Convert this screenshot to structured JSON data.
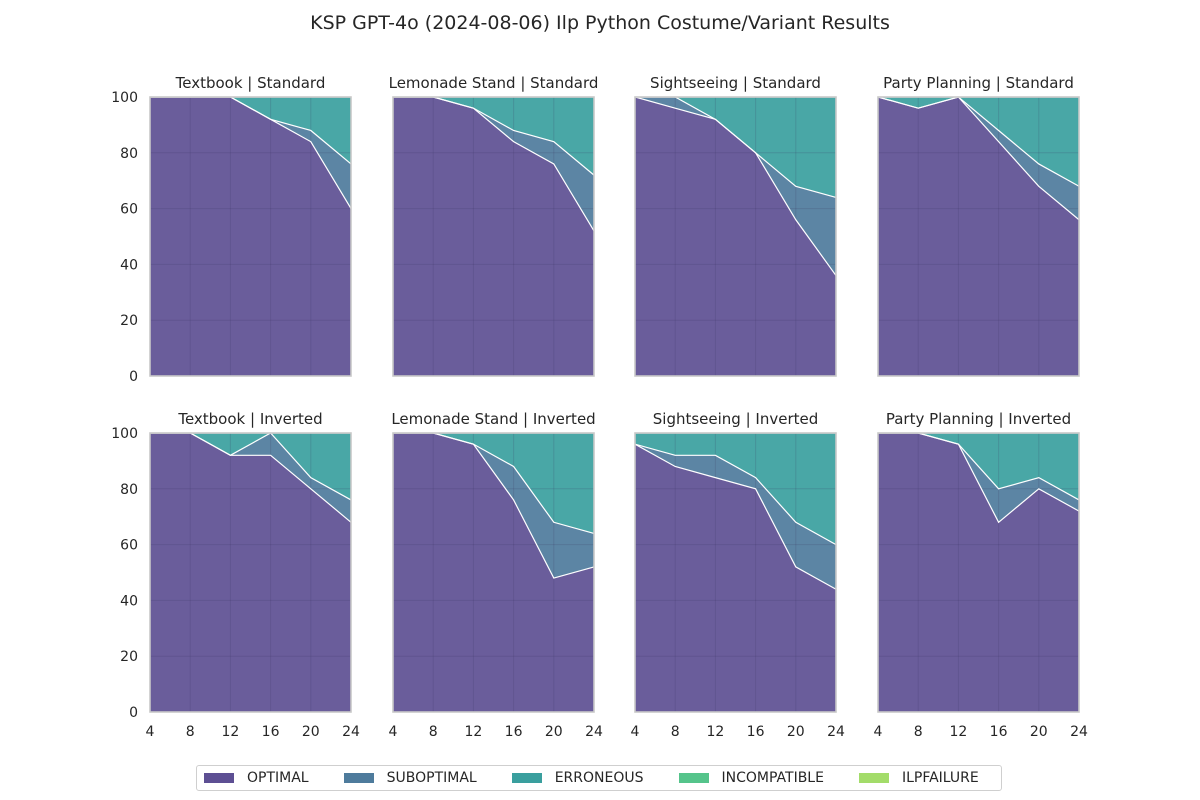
{
  "title": "KSP GPT-4o (2024-08-06) Ilp Python Costume/Variant Results",
  "colors": {
    "OPTIMAL": "#5d4f93",
    "SUBOPTIMAL": "#4e7b9c",
    "ERRONEOUS": "#3a9f9e",
    "INCOMPATIBLE": "#55c48b",
    "ILPFAILURE": "#a3dc6a"
  },
  "legend": [
    "OPTIMAL",
    "SUBOPTIMAL",
    "ERRONEOUS",
    "INCOMPATIBLE",
    "ILPFAILURE"
  ],
  "chart_data": {
    "type": "area",
    "stacked": true,
    "grid": true,
    "x": [
      4,
      8,
      12,
      16,
      20,
      24
    ],
    "xticks": [
      "4",
      "8",
      "12",
      "16",
      "20",
      "24"
    ],
    "yticks": [
      "0",
      "20",
      "40",
      "60",
      "80",
      "100"
    ],
    "xlim": [
      4,
      24
    ],
    "ylim": [
      0,
      100
    ],
    "subplots": [
      {
        "title": "Textbook | Standard",
        "series": [
          {
            "name": "OPTIMAL",
            "values": [
              100,
              100,
              100,
              92,
              84,
              60
            ]
          },
          {
            "name": "SUBOPTIMAL",
            "values": [
              0,
              0,
              0,
              0,
              4,
              16
            ]
          },
          {
            "name": "ERRONEOUS",
            "values": [
              0,
              0,
              0,
              8,
              12,
              24
            ]
          },
          {
            "name": "INCOMPATIBLE",
            "values": [
              0,
              0,
              0,
              0,
              0,
              0
            ]
          },
          {
            "name": "ILPFAILURE",
            "values": [
              0,
              0,
              0,
              0,
              0,
              0
            ]
          }
        ]
      },
      {
        "title": "Lemonade Stand | Standard",
        "series": [
          {
            "name": "OPTIMAL",
            "values": [
              100,
              100,
              96,
              84,
              76,
              52
            ]
          },
          {
            "name": "SUBOPTIMAL",
            "values": [
              0,
              0,
              0,
              4,
              8,
              20
            ]
          },
          {
            "name": "ERRONEOUS",
            "values": [
              0,
              0,
              4,
              12,
              16,
              28
            ]
          },
          {
            "name": "INCOMPATIBLE",
            "values": [
              0,
              0,
              0,
              0,
              0,
              0
            ]
          },
          {
            "name": "ILPFAILURE",
            "values": [
              0,
              0,
              0,
              0,
              0,
              0
            ]
          }
        ]
      },
      {
        "title": "Sightseeing | Standard",
        "series": [
          {
            "name": "OPTIMAL",
            "values": [
              100,
              96,
              92,
              80,
              56,
              36
            ]
          },
          {
            "name": "SUBOPTIMAL",
            "values": [
              0,
              4,
              0,
              0,
              12,
              28
            ]
          },
          {
            "name": "ERRONEOUS",
            "values": [
              0,
              0,
              8,
              20,
              32,
              36
            ]
          },
          {
            "name": "INCOMPATIBLE",
            "values": [
              0,
              0,
              0,
              0,
              0,
              0
            ]
          },
          {
            "name": "ILPFAILURE",
            "values": [
              0,
              0,
              0,
              0,
              0,
              0
            ]
          }
        ]
      },
      {
        "title": "Party Planning | Standard",
        "series": [
          {
            "name": "OPTIMAL",
            "values": [
              100,
              96,
              100,
              84,
              68,
              56
            ]
          },
          {
            "name": "SUBOPTIMAL",
            "values": [
              0,
              0,
              0,
              4,
              8,
              12
            ]
          },
          {
            "name": "ERRONEOUS",
            "values": [
              0,
              4,
              0,
              12,
              24,
              32
            ]
          },
          {
            "name": "INCOMPATIBLE",
            "values": [
              0,
              0,
              0,
              0,
              0,
              0
            ]
          },
          {
            "name": "ILPFAILURE",
            "values": [
              0,
              0,
              0,
              0,
              0,
              0
            ]
          }
        ]
      },
      {
        "title": "Textbook | Inverted",
        "series": [
          {
            "name": "OPTIMAL",
            "values": [
              100,
              100,
              92,
              92,
              80,
              68
            ]
          },
          {
            "name": "SUBOPTIMAL",
            "values": [
              0,
              0,
              0,
              8,
              4,
              8
            ]
          },
          {
            "name": "ERRONEOUS",
            "values": [
              0,
              0,
              8,
              0,
              16,
              24
            ]
          },
          {
            "name": "INCOMPATIBLE",
            "values": [
              0,
              0,
              0,
              0,
              0,
              0
            ]
          },
          {
            "name": "ILPFAILURE",
            "values": [
              0,
              0,
              0,
              0,
              0,
              0
            ]
          }
        ]
      },
      {
        "title": "Lemonade Stand | Inverted",
        "series": [
          {
            "name": "OPTIMAL",
            "values": [
              100,
              100,
              96,
              76,
              48,
              52
            ]
          },
          {
            "name": "SUBOPTIMAL",
            "values": [
              0,
              0,
              0,
              12,
              20,
              12
            ]
          },
          {
            "name": "ERRONEOUS",
            "values": [
              0,
              0,
              4,
              12,
              32,
              36
            ]
          },
          {
            "name": "INCOMPATIBLE",
            "values": [
              0,
              0,
              0,
              0,
              0,
              0
            ]
          },
          {
            "name": "ILPFAILURE",
            "values": [
              0,
              0,
              0,
              0,
              0,
              0
            ]
          }
        ]
      },
      {
        "title": "Sightseeing | Inverted",
        "series": [
          {
            "name": "OPTIMAL",
            "values": [
              96,
              88,
              84,
              80,
              52,
              44
            ]
          },
          {
            "name": "SUBOPTIMAL",
            "values": [
              0,
              4,
              8,
              4,
              16,
              16
            ]
          },
          {
            "name": "ERRONEOUS",
            "values": [
              4,
              8,
              8,
              16,
              32,
              40
            ]
          },
          {
            "name": "INCOMPATIBLE",
            "values": [
              0,
              0,
              0,
              0,
              0,
              0
            ]
          },
          {
            "name": "ILPFAILURE",
            "values": [
              0,
              0,
              0,
              0,
              0,
              0
            ]
          }
        ]
      },
      {
        "title": "Party Planning | Inverted",
        "series": [
          {
            "name": "OPTIMAL",
            "values": [
              100,
              100,
              96,
              68,
              80,
              72
            ]
          },
          {
            "name": "SUBOPTIMAL",
            "values": [
              0,
              0,
              0,
              12,
              4,
              4
            ]
          },
          {
            "name": "ERRONEOUS",
            "values": [
              0,
              0,
              4,
              20,
              16,
              24
            ]
          },
          {
            "name": "INCOMPATIBLE",
            "values": [
              0,
              0,
              0,
              0,
              0,
              0
            ]
          },
          {
            "name": "ILPFAILURE",
            "values": [
              0,
              0,
              0,
              0,
              0,
              0
            ]
          }
        ]
      }
    ]
  }
}
